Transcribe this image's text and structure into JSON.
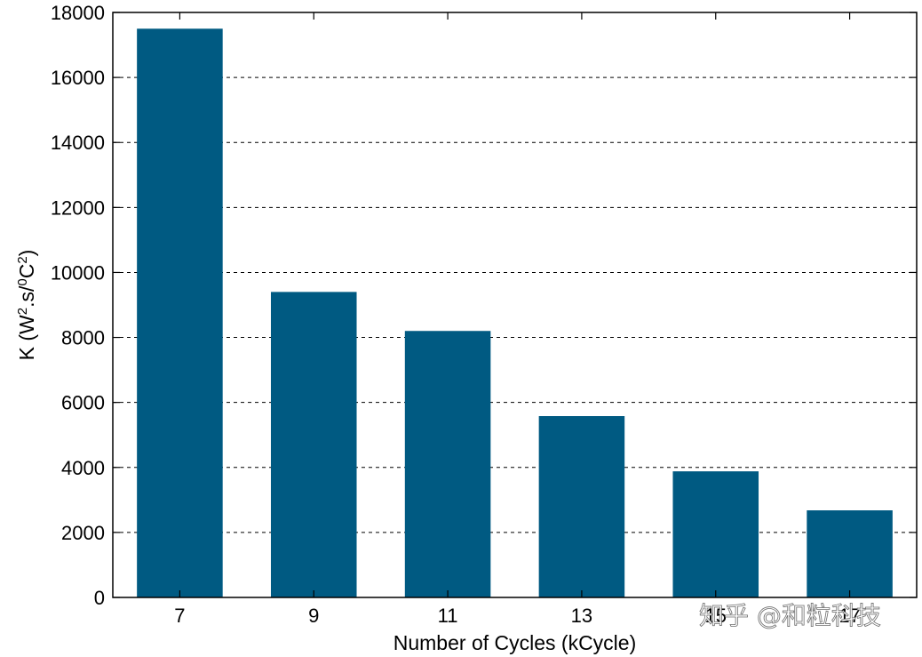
{
  "chart_data": {
    "type": "bar",
    "categories": [
      "7",
      "9",
      "11",
      "13",
      "15",
      "17"
    ],
    "values": [
      17500,
      9400,
      8200,
      5580,
      3880,
      2680
    ],
    "xlabel": "Number of Cycles (kCycle)",
    "ylabel_parts": {
      "base": "K (W",
      "sup1": "2",
      "mid": ".s/",
      "sup2": "0",
      "mid2": "C",
      "sup3": "2",
      "end": ")"
    },
    "ylim": [
      0,
      18000
    ],
    "yticks": [
      0,
      2000,
      4000,
      6000,
      8000,
      10000,
      12000,
      14000,
      16000,
      18000
    ],
    "grid": "horizontal-dashed",
    "bar_color": "#005a82"
  },
  "watermark": "知乎 @和粒科技"
}
